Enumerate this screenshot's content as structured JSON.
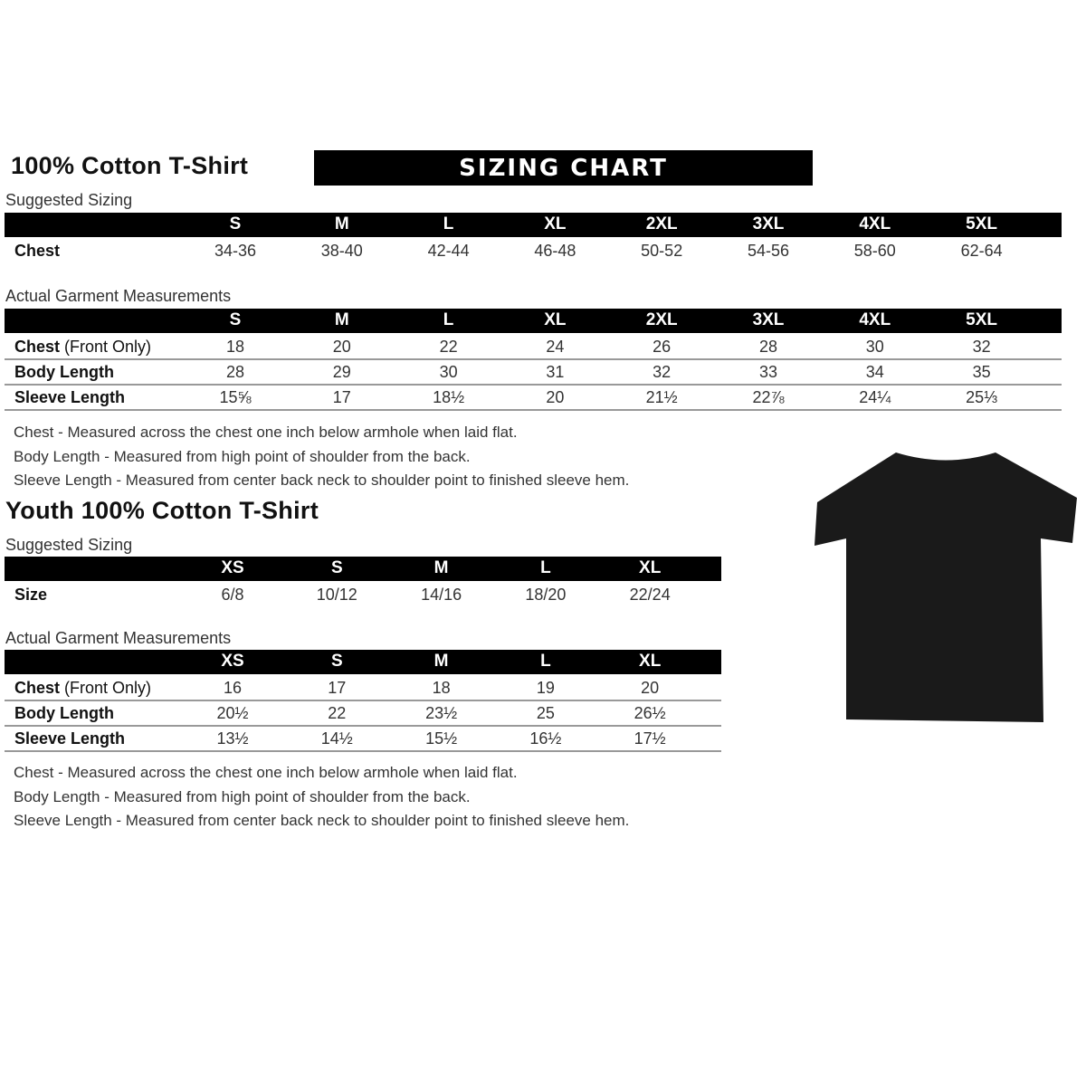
{
  "adult": {
    "title": "100% Cotton T-Shirt",
    "banner": "SIZING CHART",
    "suggested_label": "Suggested Sizing",
    "sizes": [
      "S",
      "M",
      "L",
      "XL",
      "2XL",
      "3XL",
      "4XL",
      "5XL"
    ],
    "suggested_rows": [
      {
        "label": "Chest",
        "values": [
          "34-36",
          "38-40",
          "42-44",
          "46-48",
          "50-52",
          "54-56",
          "58-60",
          "62-64"
        ]
      }
    ],
    "actual_label": "Actual Garment Measurements",
    "actual_rows": [
      {
        "label": "Chest",
        "label_extra": " (Front Only)",
        "values": [
          "18",
          "20",
          "22",
          "24",
          "26",
          "28",
          "30",
          "32"
        ]
      },
      {
        "label": "Body Length",
        "label_extra": "",
        "values": [
          "28",
          "29",
          "30",
          "31",
          "32",
          "33",
          "34",
          "35"
        ]
      },
      {
        "label": "Sleeve Length",
        "label_extra": "",
        "values": [
          "15⅝",
          "17",
          "18½",
          "20",
          "21½",
          "22⅞",
          "24¼",
          "25⅓"
        ]
      }
    ],
    "notes": [
      "Chest - Measured across the chest one inch below armhole when laid flat.",
      "Body Length - Measured from high point of shoulder from the back.",
      "Sleeve Length - Measured from center back neck to shoulder point to finished sleeve hem."
    ]
  },
  "youth": {
    "title": "Youth 100% Cotton T-Shirt",
    "suggested_label": "Suggested Sizing",
    "sizes": [
      "XS",
      "S",
      "M",
      "L",
      "XL"
    ],
    "suggested_rows": [
      {
        "label": "Size",
        "values": [
          "6/8",
          "10/12",
          "14/16",
          "18/20",
          "22/24"
        ]
      }
    ],
    "actual_label": "Actual Garment Measurements",
    "actual_rows": [
      {
        "label": "Chest",
        "label_extra": " (Front Only)",
        "values": [
          "16",
          "17",
          "18",
          "19",
          "20"
        ]
      },
      {
        "label": "Body Length",
        "label_extra": "",
        "values": [
          "20½",
          "22",
          "23½",
          "25",
          "26½"
        ]
      },
      {
        "label": "Sleeve Length",
        "label_extra": "",
        "values": [
          "13½",
          "14½",
          "15½",
          "16½",
          "17½"
        ]
      }
    ],
    "notes": [
      "Chest - Measured across the chest one inch below armhole when laid flat.",
      "Body Length - Measured from high point of shoulder from the back.",
      "Sleeve Length - Measured from center back neck to shoulder point to finished sleeve hem."
    ]
  },
  "colors": {
    "shirt": "#1a1a1a",
    "header_bar": "#000000"
  }
}
